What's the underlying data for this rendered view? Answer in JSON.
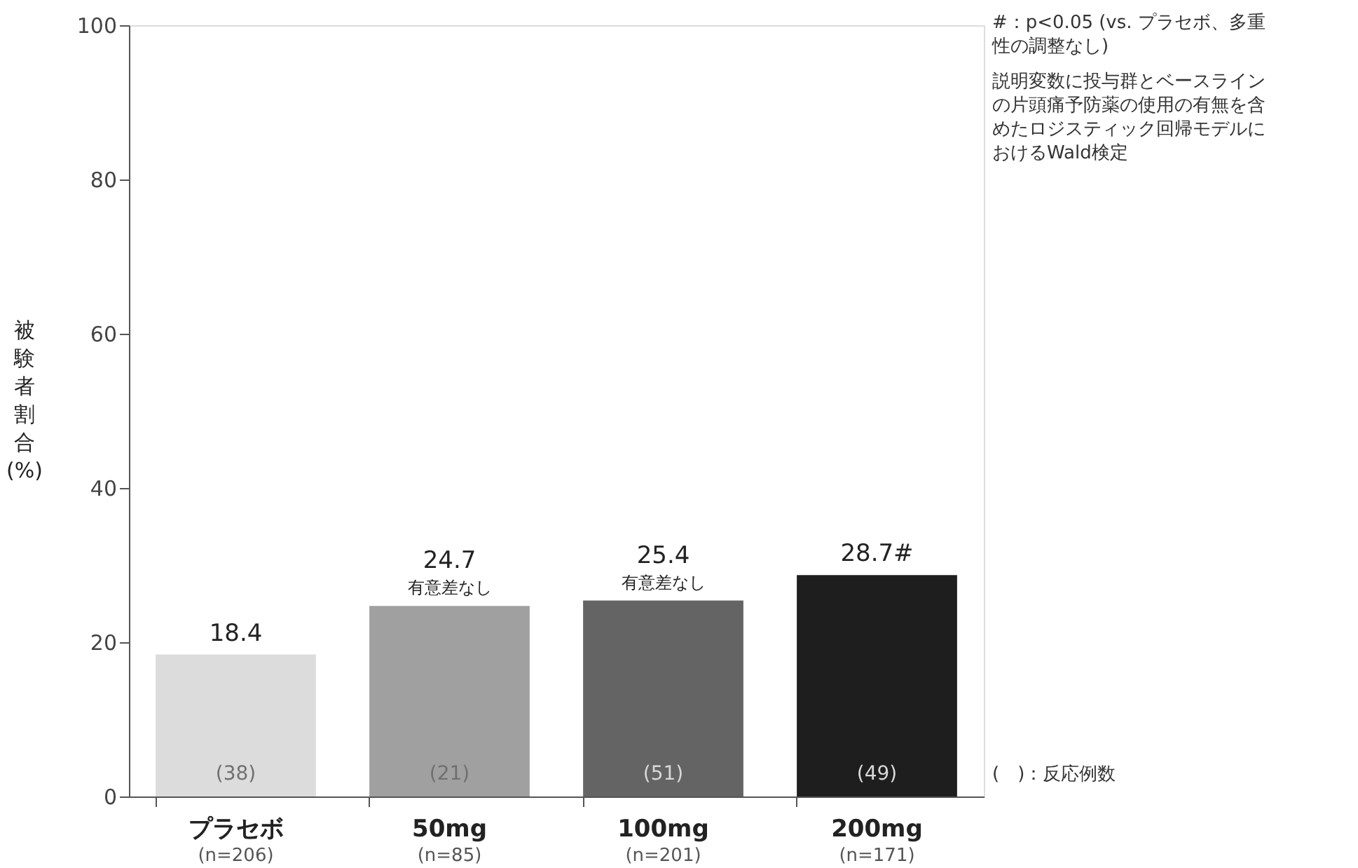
{
  "chart_data": {
    "type": "bar",
    "ylabel": "被験者割合(%)",
    "categories": [
      "プラセボ\n(n=206)",
      "50mg\n(n=85)",
      "100mg\n(n=201)",
      "200mg\n(n=171)"
    ],
    "values": [
      18.4,
      24.7,
      25.4,
      28.7
    ],
    "colors": [
      "#dcdcdc",
      "#a0a0a0",
      "#646464",
      "#1e1e1e"
    ],
    "value_labels": [
      "18.4",
      "24.7\n有意差なし",
      "25.4\n有意差なし",
      "28.7#"
    ],
    "ylim": [
      0,
      100
    ],
    "yticks": [
      0,
      20,
      40,
      60,
      80,
      100
    ],
    "grid": false,
    "annotations": [
      "#：p<0.05 (vs. プラセボ、多重性の調整なし)",
      "説明変数に投与群とベースラインの片頭痛予防薬の使用の有無を含めたロジスティック回帰モデルにおけるWald検定",
      "(　)：反応例数",
      "(38)",
      "(21)",
      "(51)",
      "(49)"
    ]
  }
}
